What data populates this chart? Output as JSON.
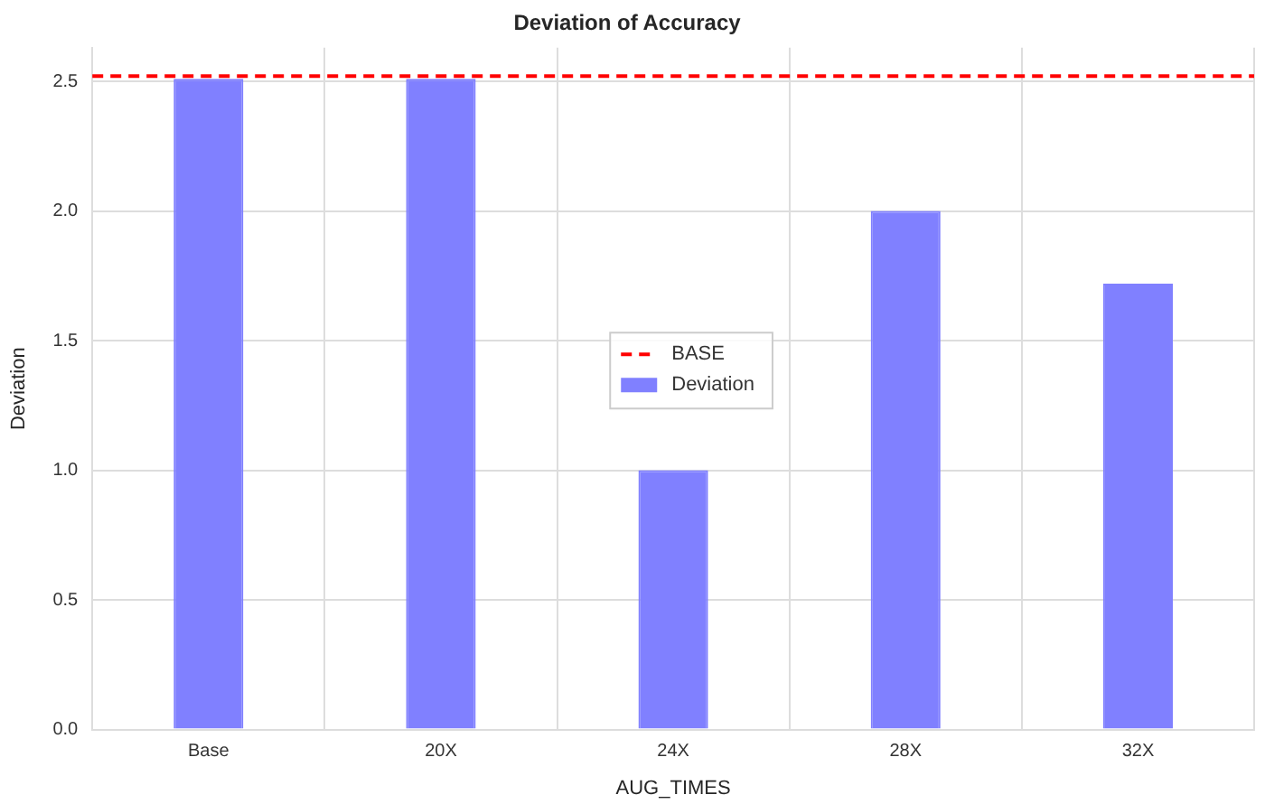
{
  "chart_data": {
    "type": "bar",
    "title": "Deviation of Accuracy",
    "xlabel": "AUG_TIMES",
    "ylabel": "Deviation",
    "categories": [
      "Base",
      "20X",
      "24X",
      "28X",
      "32X"
    ],
    "series": [
      {
        "name": "Deviation",
        "color": "#8080ff",
        "values": [
          2.51,
          2.51,
          1.0,
          2.0,
          1.72
        ]
      }
    ],
    "ylim": [
      0,
      2.63
    ],
    "yticks": [
      {
        "value": 0,
        "label": "0.0"
      },
      0.5,
      {
        "value": 1,
        "label": "1.0"
      },
      1.5,
      {
        "value": 2,
        "label": "2.0"
      },
      2.5
    ],
    "ref_lines": [
      {
        "axis": "y",
        "value": 2.52,
        "label": "BASE",
        "color": "#ff0000",
        "line_style": "dashed"
      }
    ],
    "grid": true,
    "legend": "center"
  }
}
